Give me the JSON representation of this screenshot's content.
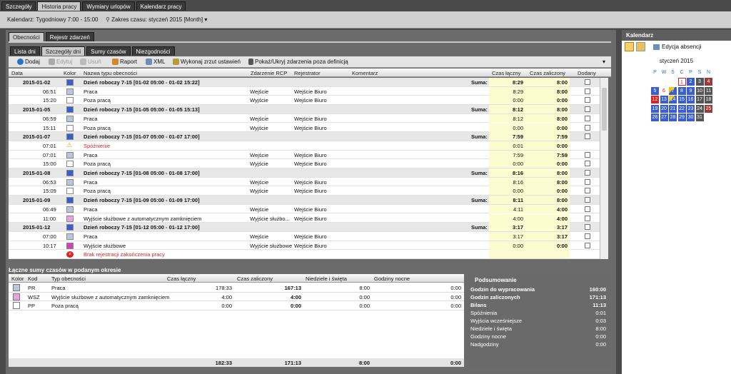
{
  "main_tabs": [
    "Szczegóły",
    "Historia pracy",
    "Wymiary urlopów",
    "Kalendarz pracy"
  ],
  "topbar": {
    "calendar": "Kalendarz: Tygodniowy 7:00 - 15:00",
    "range": "Zakres czasu: styczeń 2015 [Month]"
  },
  "sub_tabs": [
    "Obecności",
    "Rejestr zdarzeń"
  ],
  "view_tabs": [
    "Lista dni",
    "Szczegóły dni",
    "Sumy czasów",
    "Niezgodności"
  ],
  "toolbar": {
    "add": "Dodaj",
    "edit": "Edytuj",
    "delete": "Usuń",
    "report": "Raport",
    "xml": "XML",
    "snapshot": "Wykonaj zrzut ustawień",
    "toggle": "Pokaż/Ukryj zdarzenia poza definicją"
  },
  "columns": [
    "Data",
    "Kolor",
    "Nazwa typu obecności",
    "Zdarzenie RCP",
    "Rejestrator",
    "Komentarz",
    "Czas łączny",
    "Czas zaliczony",
    "Dodany"
  ],
  "rows": [
    {
      "g": true,
      "date": "2015-01-02",
      "name": "Dzień roboczy 7-15 [01-02 05:00 - 01-02 15:22]",
      "sum": "Suma:",
      "t": "8:29",
      "z": "8:00",
      "color": "#3a5fcd"
    },
    {
      "date": "06:51",
      "name": "Praca",
      "ev": "Wejście",
      "reg": "Wejście Biuro",
      "t": "8:29",
      "z": "8:00",
      "color": "#b8c8dc"
    },
    {
      "date": "15:20",
      "name": "Poza pracą",
      "ev": "Wyjście",
      "reg": "Wejście Biuro",
      "t": "0:00",
      "z": "0:00",
      "color": "#ffffff"
    },
    {
      "g": true,
      "date": "2015-01-05",
      "name": "Dzień roboczy 7-15 [01-05 05:00 - 01-05 15:13]",
      "sum": "Suma:",
      "t": "8:12",
      "z": "8:00",
      "color": "#3a5fcd"
    },
    {
      "date": "06:59",
      "name": "Praca",
      "ev": "Wejście",
      "reg": "Wejście Biuro",
      "t": "8:12",
      "z": "8:00",
      "color": "#b8c8dc"
    },
    {
      "date": "15:11",
      "name": "Poza pracą",
      "ev": "Wyjście",
      "reg": "Wejście Biuro",
      "t": "0:00",
      "z": "0:00",
      "color": "#ffffff"
    },
    {
      "g": true,
      "date": "2015-01-07",
      "name": "Dzień roboczy 7-15 [01-07 05:00 - 01-07 17:00]",
      "sum": "Suma:",
      "t": "7:59",
      "z": "7:59",
      "color": "#3a5fcd"
    },
    {
      "date": "07:01",
      "name": "Spóźnienie",
      "red": true,
      "icon": "warning",
      "t": "0:01",
      "z": "0:00"
    },
    {
      "date": "07:01",
      "name": "Praca",
      "ev": "Wejście",
      "reg": "Wejście Biuro",
      "t": "7:59",
      "z": "7:59",
      "color": "#b8c8dc"
    },
    {
      "date": "15:00",
      "name": "Poza pracą",
      "ev": "Wyjście",
      "reg": "Wejście Biuro",
      "t": "0:00",
      "z": "0:00",
      "color": "#ffffff"
    },
    {
      "g": true,
      "date": "2015-01-08",
      "name": "Dzień roboczy 7-15 [01-08 05:00 - 01-08 17:00]",
      "sum": "Suma:",
      "t": "8:16",
      "z": "8:00",
      "color": "#3a5fcd"
    },
    {
      "date": "06:53",
      "name": "Praca",
      "ev": "Wejście",
      "reg": "Wejście Biuro",
      "t": "8:16",
      "z": "8:00",
      "color": "#b8c8dc"
    },
    {
      "date": "15:09",
      "name": "Poza pracą",
      "ev": "Wyjście",
      "reg": "Wejście Biuro",
      "t": "0:00",
      "z": "0:00",
      "color": "#ffffff"
    },
    {
      "g": true,
      "date": "2015-01-09",
      "name": "Dzień roboczy 7-15 [01-09 05:00 - 01-09 17:00]",
      "sum": "Suma:",
      "t": "8:11",
      "z": "8:00",
      "color": "#3a5fcd"
    },
    {
      "date": "06:49",
      "name": "Praca",
      "ev": "Wejście",
      "reg": "Wejście Biuro",
      "t": "4:11",
      "z": "4:00",
      "color": "#b8c8dc"
    },
    {
      "date": "11:00",
      "name": "Wyjście służbowe z automatycznym zamknięciem",
      "ev": "Wyjście służbo...",
      "reg": "Wejście Biuro",
      "t": "4:00",
      "z": "4:00",
      "color": "#e7a5e0"
    },
    {
      "g": true,
      "date": "2015-01-12",
      "name": "Dzień roboczy 7-15 [01-12 05:00 - 01-12 17:00]",
      "sum": "Suma:",
      "t": "3:17",
      "z": "3:17",
      "color": "#3a5fcd"
    },
    {
      "date": "07:00",
      "name": "Praca",
      "ev": "Wejście",
      "reg": "Wejście Biuro",
      "t": "3:17",
      "z": "3:17",
      "color": "#b8c8dc"
    },
    {
      "date": "10:17",
      "name": "Wyjście służbowe",
      "ev": "Wyjście służbowe",
      "reg": "Wejście Biuro",
      "t": "0:00",
      "z": "0:00",
      "color": "#cc44bb"
    },
    {
      "date": "",
      "name": "Brak rejestracji zakończenia pracy",
      "red": true,
      "icon": "error"
    }
  ],
  "summary": {
    "title": "Łączne sumy czasów w podanym okresie",
    "columns": [
      "Kolor",
      "Kod",
      "Typ obecności",
      "Czas łączny",
      "Czas zaliczony",
      "Niedziele i święta",
      "Godziny nocne"
    ],
    "rows": [
      {
        "code": "PR",
        "name": "Praca",
        "t": "178:33",
        "z": "167:13",
        "n": "8:00",
        "g": "0:00",
        "color": "#b8c8dc"
      },
      {
        "code": "WSZ",
        "name": "Wyjście służbowe z automatycznym zamknięciem",
        "t": "4:00",
        "z": "4:00",
        "n": "0:00",
        "g": "0:00",
        "color": "#e7a5e0"
      },
      {
        "code": "PP",
        "name": "Poza pracą",
        "t": "0:00",
        "z": "0:00",
        "n": "0:00",
        "g": "0:00",
        "color": "#ffffff"
      }
    ],
    "footer": {
      "t": "182:33",
      "z": "171:13",
      "n": "8:00",
      "g": "0:00"
    }
  },
  "podsumowanie": {
    "title": "Podsumowanie",
    "rows": [
      {
        "l": "Godzin do wypracowania",
        "v": "160:00",
        "b": true
      },
      {
        "l": "Godzin zaliczonych",
        "v": "171:13",
        "b": true
      },
      {
        "l": "Bilans",
        "v": "11:13",
        "b": true
      },
      {
        "l": "Spóźnienia",
        "v": "0:01"
      },
      {
        "l": "Wyjścia wcześniejsze",
        "v": "0:03"
      },
      {
        "l": "Niedziele i święta",
        "v": "8:00"
      },
      {
        "l": "Godziny nocne",
        "v": "0:00"
      },
      {
        "l": "Nadgodziny",
        "v": "0:00"
      }
    ]
  },
  "calendar": {
    "title": "Kalendarz",
    "edit": "Edycja absencji",
    "month": "styczeń 2015",
    "weekdays": [
      "P",
      "W",
      "Ś",
      "C",
      "P",
      "S",
      "N"
    ],
    "weeks": [
      [
        [
          "",
          ""
        ],
        [
          "",
          ""
        ],
        [
          "",
          ""
        ],
        [
          "1",
          "w"
        ],
        [
          "2",
          "b"
        ],
        [
          "3",
          "g"
        ],
        [
          "4",
          "r"
        ]
      ],
      [
        [
          "5",
          "b"
        ],
        [
          "6",
          "rt"
        ],
        [
          "7",
          "bw"
        ],
        [
          "8",
          "b"
        ],
        [
          "9",
          "b"
        ],
        [
          "10",
          "g"
        ],
        [
          "11",
          "g"
        ]
      ],
      [
        [
          "12",
          "be"
        ],
        [
          "13",
          "b"
        ],
        [
          "14",
          "bw"
        ],
        [
          "15",
          "b"
        ],
        [
          "16",
          "b"
        ],
        [
          "17",
          "g"
        ],
        [
          "18",
          "g"
        ]
      ],
      [
        [
          "19",
          "b"
        ],
        [
          "20",
          "b"
        ],
        [
          "21",
          "b"
        ],
        [
          "22",
          "b"
        ],
        [
          "23",
          "b"
        ],
        [
          "24",
          "g"
        ],
        [
          "25",
          "r"
        ]
      ],
      [
        [
          "26",
          "b"
        ],
        [
          "27",
          "b"
        ],
        [
          "28",
          "b"
        ],
        [
          "29",
          "b"
        ],
        [
          "30",
          "b"
        ],
        [
          "31",
          "g"
        ],
        [
          "",
          ""
        ]
      ]
    ]
  }
}
